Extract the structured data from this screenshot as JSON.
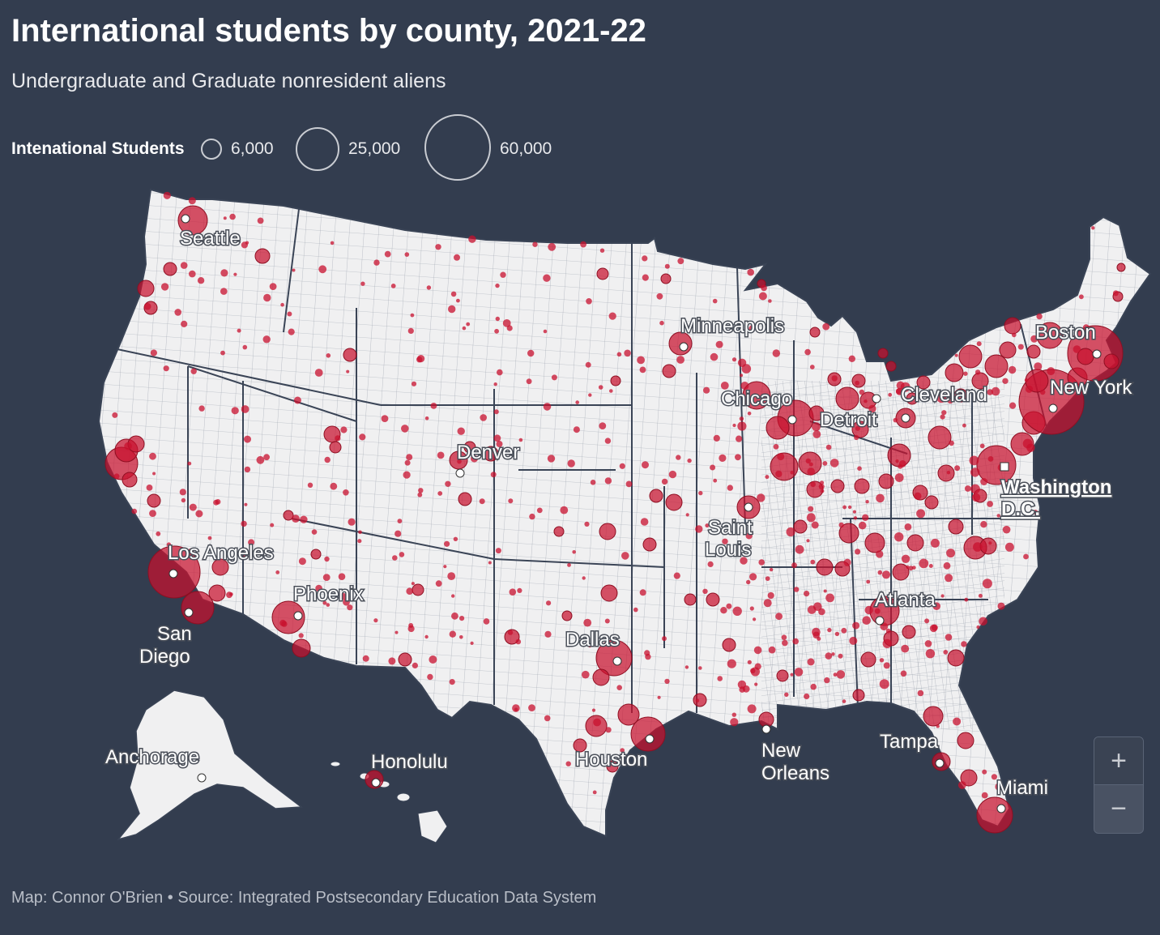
{
  "title": "International students by county, 2021-22",
  "subtitle": "Undergraduate and Graduate nonresident aliens",
  "legend": {
    "title": "Intenational Students",
    "items": [
      {
        "label": "6,000",
        "value": 6000
      },
      {
        "label": "25,000",
        "value": 25000
      },
      {
        "label": "60,000",
        "value": 60000
      }
    ]
  },
  "colors": {
    "background": "#333d4f",
    "land": "#f0f0f1",
    "border": "#3a4456",
    "bubble": "#c8102e"
  },
  "cities": [
    {
      "name": "Seattle"
    },
    {
      "name": "Minneapolis"
    },
    {
      "name": "Boston"
    },
    {
      "name": "New York"
    },
    {
      "name": "Chicago"
    },
    {
      "name": "Detroit"
    },
    {
      "name": "Cleveland"
    },
    {
      "name": "Denver"
    },
    {
      "name": "Washington D.C."
    },
    {
      "name": "Saint Louis"
    },
    {
      "name": "Los Angeles"
    },
    {
      "name": "Phoenix"
    },
    {
      "name": "Atlanta"
    },
    {
      "name": "San Diego"
    },
    {
      "name": "Dallas"
    },
    {
      "name": "Houston"
    },
    {
      "name": "New Orleans"
    },
    {
      "name": "Tampa"
    },
    {
      "name": "Anchorage"
    },
    {
      "name": "Honolulu"
    },
    {
      "name": "Miami"
    }
  ],
  "zoom": {
    "in_label": "+",
    "out_label": "−"
  },
  "footer": "Map: Connor O'Brien • Source: Integrated Postsecondary Education Data System"
}
